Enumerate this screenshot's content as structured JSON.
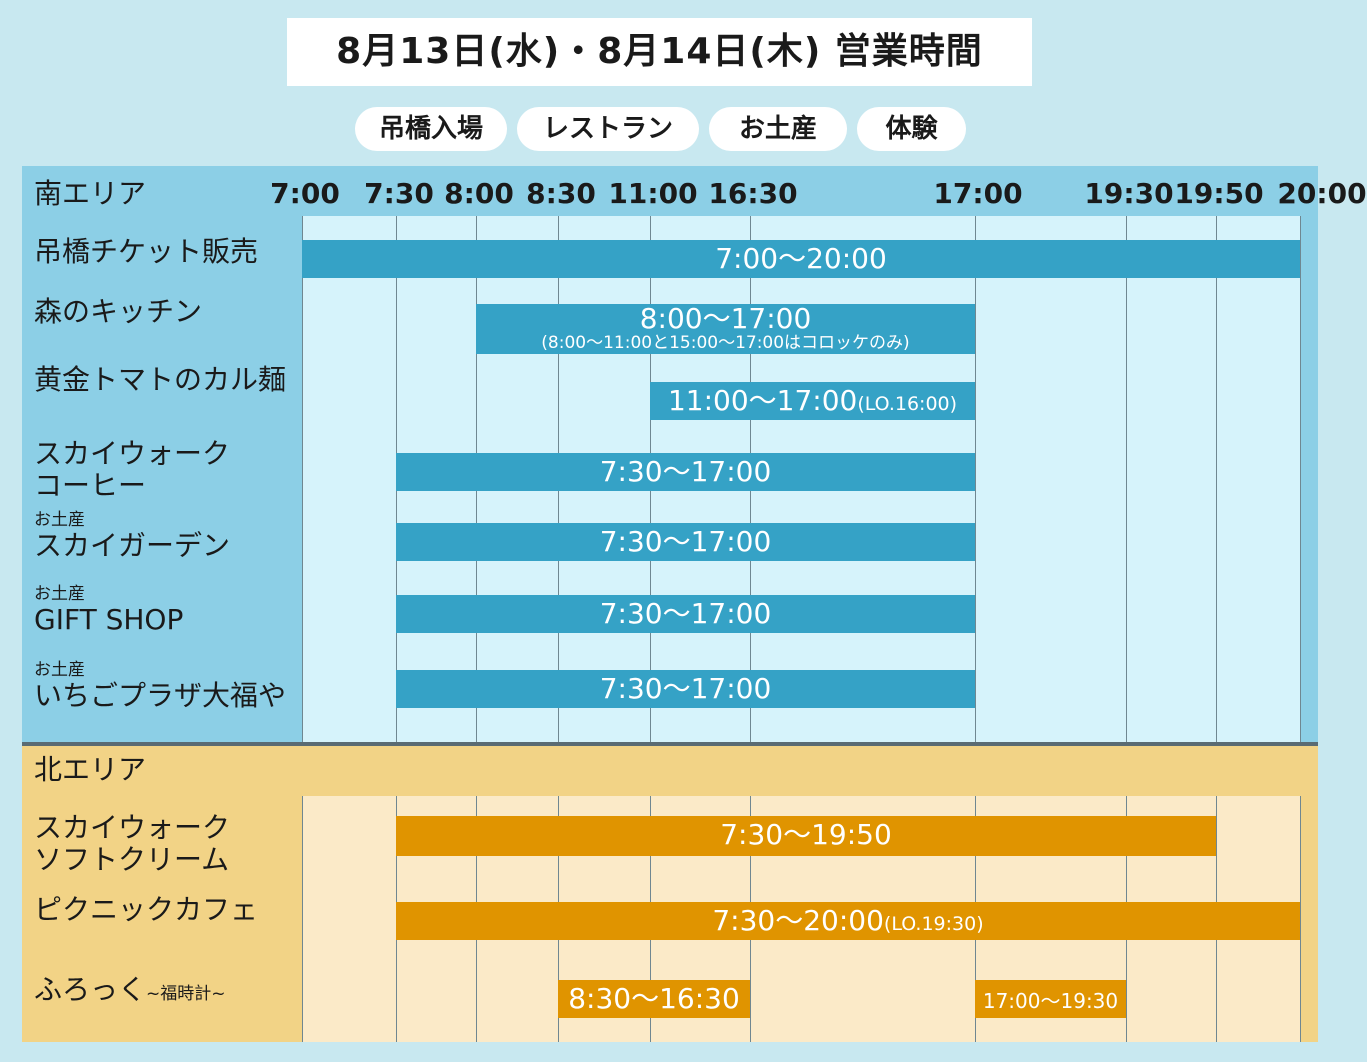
{
  "title": "8月13日(水)・8月14日(木) 営業時間",
  "categories": [
    {
      "label": "吊橋入場"
    },
    {
      "label": "レストラン"
    },
    {
      "label": "お土産"
    },
    {
      "label": "体験"
    }
  ],
  "colors": {
    "background": "#c8e8f0",
    "south_panel": "#8ccfe6",
    "south_grid": "#d6f3fb",
    "south_bar": "#35a2c6",
    "north_panel": "#f2d386",
    "north_grid": "#fbeac8",
    "north_bar": "#e09400"
  },
  "chart_data": {
    "type": "bar",
    "orientation": "horizontal",
    "x_ticks": [
      "7:00",
      "7:30",
      "8:00",
      "8:30",
      "11:00",
      "16:30",
      "17:00",
      "19:30",
      "19:50",
      "20:00"
    ],
    "areas": [
      {
        "name": "南エリア",
        "rows": [
          {
            "label": "吊橋チケット販売",
            "sub": "",
            "bars": [
              {
                "start": "7:00",
                "end": "20:00",
                "text": "7:00〜20:00",
                "note": "",
                "subnote": ""
              }
            ]
          },
          {
            "label": "森のキッチン",
            "sub": "",
            "bars": [
              {
                "start": "8:00",
                "end": "17:00",
                "text": "8:00〜17:00",
                "note": "",
                "subnote": "(8:00〜11:00と15:00〜17:00はコロッケのみ)"
              }
            ]
          },
          {
            "label": "黄金トマトのカル麺",
            "sub": "",
            "bars": [
              {
                "start": "11:00",
                "end": "17:00",
                "text": "11:00〜17:00",
                "note": "(LO.16:00)",
                "subnote": ""
              }
            ]
          },
          {
            "label": "スカイウォーク",
            "label2": "コーヒー",
            "sub": "",
            "bars": [
              {
                "start": "7:30",
                "end": "17:00",
                "text": "7:30〜17:00",
                "note": "",
                "subnote": ""
              }
            ]
          },
          {
            "label": "スカイガーデン",
            "sub": "お土産",
            "bars": [
              {
                "start": "7:30",
                "end": "17:00",
                "text": "7:30〜17:00",
                "note": "",
                "subnote": ""
              }
            ]
          },
          {
            "label": "GIFT SHOP",
            "sub": "お土産",
            "bars": [
              {
                "start": "7:30",
                "end": "17:00",
                "text": "7:30〜17:00",
                "note": "",
                "subnote": ""
              }
            ]
          },
          {
            "label": "いちごプラザ大福や",
            "sub": "お土産",
            "bars": [
              {
                "start": "7:30",
                "end": "17:00",
                "text": "7:30〜17:00",
                "note": "",
                "subnote": ""
              }
            ]
          }
        ]
      },
      {
        "name": "北エリア",
        "rows": [
          {
            "label": "スカイウォーク",
            "label2": "ソフトクリーム",
            "sub": "",
            "bars": [
              {
                "start": "7:30",
                "end": "19:50",
                "text": "7:30〜19:50",
                "note": "",
                "subnote": ""
              }
            ]
          },
          {
            "label": "ピクニックカフェ",
            "sub": "",
            "bars": [
              {
                "start": "7:30",
                "end": "20:00",
                "text": "7:30〜20:00",
                "note": "(LO.19:30)",
                "subnote": ""
              }
            ]
          },
          {
            "label": "ふろっく",
            "deco": "~福時計~",
            "sub": "",
            "bars": [
              {
                "start": "8:30",
                "end": "16:30",
                "text": "8:30〜16:30",
                "note": "",
                "subnote": ""
              },
              {
                "start": "17:00",
                "end": "19:30",
                "text": "17:00〜19:30",
                "note": "",
                "subnote": ""
              }
            ]
          }
        ]
      }
    ]
  }
}
